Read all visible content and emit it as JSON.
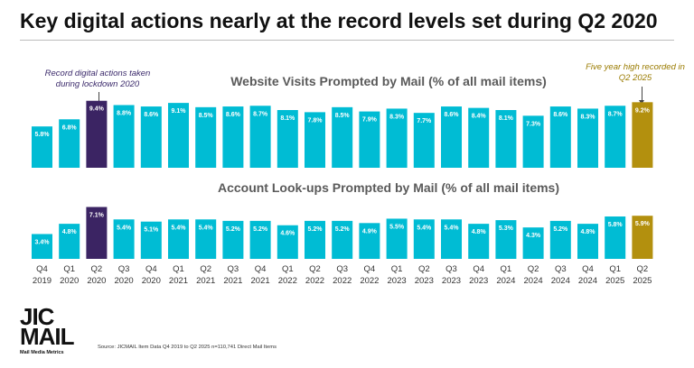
{
  "page": {
    "title": "Key digital actions nearly at the record levels set during Q2 2020"
  },
  "annotations": {
    "left": "Record digital actions taken during lockdown 2020",
    "right": "Five year high recorded in Q2 2025"
  },
  "colors": {
    "bar": "#00bcd4",
    "record": "#3b2463",
    "high": "#b3900e"
  },
  "logo": {
    "main": "JIC MAIL",
    "sub": "Mail Media Metrics"
  },
  "source": "Source: JICMAIL Item Data Q4 2019 to Q2 2025 n=110,741 Direct Mail Items",
  "chart_data": [
    {
      "type": "bar",
      "title": "Website Visits Prompted by Mail (% of all mail items)",
      "categories": [
        [
          "Q4",
          "2019"
        ],
        [
          "Q1",
          "2020"
        ],
        [
          "Q2",
          "2020"
        ],
        [
          "Q3",
          "2020"
        ],
        [
          "Q4",
          "2020"
        ],
        [
          "Q1",
          "2021"
        ],
        [
          "Q2",
          "2021"
        ],
        [
          "Q3",
          "2021"
        ],
        [
          "Q4",
          "2021"
        ],
        [
          "Q1",
          "2022"
        ],
        [
          "Q2",
          "2022"
        ],
        [
          "Q3",
          "2022"
        ],
        [
          "Q4",
          "2022"
        ],
        [
          "Q1",
          "2023"
        ],
        [
          "Q2",
          "2023"
        ],
        [
          "Q3",
          "2023"
        ],
        [
          "Q4",
          "2023"
        ],
        [
          "Q1",
          "2024"
        ],
        [
          "Q2",
          "2024"
        ],
        [
          "Q3",
          "2024"
        ],
        [
          "Q4",
          "2024"
        ],
        [
          "Q1",
          "2025"
        ],
        [
          "Q2",
          "2025"
        ]
      ],
      "values": [
        5.8,
        6.8,
        9.4,
        8.8,
        8.6,
        9.1,
        8.5,
        8.6,
        8.7,
        8.1,
        7.8,
        8.5,
        7.9,
        8.3,
        7.7,
        8.6,
        8.4,
        8.1,
        7.3,
        8.6,
        8.3,
        8.7,
        9.2
      ],
      "value_labels": [
        "5.8%",
        "6.8%",
        "9.4%",
        "8.8%",
        "8.6%",
        "9.1%",
        "8.5%",
        "8.6%",
        "8.7%",
        "8.1%",
        "7.8%",
        "8.5%",
        "7.9%",
        "8.3%",
        "7.7%",
        "8.6%",
        "8.4%",
        "8.1%",
        "7.3%",
        "8.6%",
        "8.3%",
        "8.7%",
        "9.2%"
      ],
      "highlight": {
        "2": "record",
        "22": "high"
      }
    },
    {
      "type": "bar",
      "title": "Account Look-ups Prompted by Mail (% of all mail items)",
      "categories": [
        [
          "Q4",
          "2019"
        ],
        [
          "Q1",
          "2020"
        ],
        [
          "Q2",
          "2020"
        ],
        [
          "Q3",
          "2020"
        ],
        [
          "Q4",
          "2020"
        ],
        [
          "Q1",
          "2021"
        ],
        [
          "Q2",
          "2021"
        ],
        [
          "Q3",
          "2021"
        ],
        [
          "Q4",
          "2021"
        ],
        [
          "Q1",
          "2022"
        ],
        [
          "Q2",
          "2022"
        ],
        [
          "Q3",
          "2022"
        ],
        [
          "Q4",
          "2022"
        ],
        [
          "Q1",
          "2023"
        ],
        [
          "Q2",
          "2023"
        ],
        [
          "Q3",
          "2023"
        ],
        [
          "Q4",
          "2023"
        ],
        [
          "Q1",
          "2024"
        ],
        [
          "Q2",
          "2024"
        ],
        [
          "Q3",
          "2024"
        ],
        [
          "Q4",
          "2024"
        ],
        [
          "Q1",
          "2025"
        ],
        [
          "Q2",
          "2025"
        ]
      ],
      "values": [
        3.4,
        4.8,
        7.1,
        5.4,
        5.1,
        5.4,
        5.4,
        5.2,
        5.2,
        4.6,
        5.2,
        5.2,
        4.9,
        5.5,
        5.4,
        5.4,
        4.8,
        5.3,
        4.3,
        5.2,
        4.8,
        5.8,
        5.9
      ],
      "value_labels": [
        "3.4%",
        "4.8%",
        "7.1%",
        "5.4%",
        "5.1%",
        "5.4%",
        "5.4%",
        "5.2%",
        "5.2%",
        "4.6%",
        "5.2%",
        "5.2%",
        "4.9%",
        "5.5%",
        "5.4%",
        "5.4%",
        "4.8%",
        "5.3%",
        "4.3%",
        "5.2%",
        "4.8%",
        "5.8%",
        "5.9%"
      ],
      "highlight": {
        "2": "record",
        "22": "high"
      }
    }
  ]
}
